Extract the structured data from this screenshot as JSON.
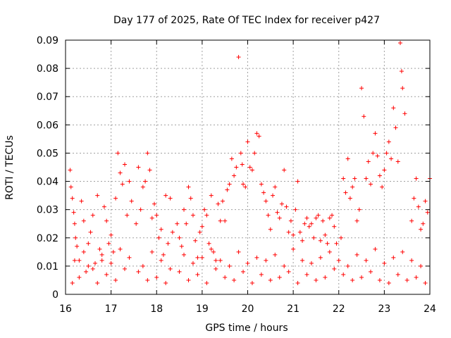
{
  "chart_data": {
    "type": "scatter",
    "title": "Day 177 of 2025, Rate Of TEC Index for receiver p427",
    "xlabel": "GPS time / hours",
    "ylabel": "ROTI / TECUs",
    "xlim": [
      16,
      24
    ],
    "ylim": [
      0,
      0.09
    ],
    "xticks": [
      16,
      17,
      18,
      19,
      20,
      21,
      22,
      23,
      24
    ],
    "xtick_labels": [
      "16",
      "17",
      "18",
      "19",
      "20",
      "21",
      "22",
      "23",
      "24"
    ],
    "yticks": [
      0,
      0.01,
      0.02,
      0.03,
      0.04,
      0.05,
      0.06,
      0.07,
      0.08,
      0.09
    ],
    "ytick_labels": [
      "0",
      "0.01",
      "0.02",
      "0.03",
      "0.04",
      "0.05",
      "0.06",
      "0.07",
      "0.08",
      "0.09"
    ],
    "grid": true,
    "marker": "+",
    "color": "#ff0000",
    "series": [
      {
        "name": "ROTI",
        "x": [
          16.1,
          16.12,
          16.15,
          16.18,
          16.2,
          16.22,
          16.25,
          16.3,
          16.35,
          16.4,
          16.45,
          16.5,
          16.55,
          16.6,
          16.65,
          16.7,
          16.75,
          16.8,
          16.85,
          16.9,
          16.95,
          17.0,
          17.05,
          17.1,
          17.15,
          17.2,
          17.25,
          17.3,
          17.35,
          17.4,
          17.45,
          17.55,
          17.6,
          17.65,
          17.7,
          17.75,
          17.8,
          17.85,
          17.9,
          17.95,
          18.0,
          18.05,
          18.1,
          18.15,
          18.2,
          18.25,
          18.3,
          18.35,
          18.45,
          18.5,
          18.55,
          18.6,
          18.65,
          18.7,
          18.75,
          18.8,
          18.85,
          18.9,
          18.95,
          19.0,
          19.05,
          19.1,
          19.15,
          19.2,
          19.25,
          19.3,
          19.35,
          19.4,
          19.45,
          19.5,
          19.55,
          19.6,
          19.65,
          19.7,
          19.75,
          19.8,
          19.85,
          19.88,
          19.9,
          19.95,
          20.0,
          20.05,
          20.1,
          20.15,
          20.2,
          20.25,
          20.3,
          20.35,
          20.4,
          20.45,
          20.5,
          20.55,
          20.6,
          20.65,
          20.7,
          20.75,
          20.8,
          20.85,
          20.9,
          20.95,
          21.0,
          21.05,
          21.1,
          21.15,
          21.2,
          21.25,
          21.3,
          21.35,
          21.4,
          21.45,
          21.5,
          21.55,
          21.6,
          21.65,
          21.7,
          21.75,
          21.8,
          21.85,
          21.9,
          21.95,
          22.05,
          22.1,
          22.15,
          22.2,
          22.25,
          22.3,
          22.35,
          22.4,
          22.45,
          22.5,
          22.55,
          22.6,
          22.65,
          22.7,
          22.75,
          22.8,
          22.85,
          22.9,
          22.95,
          23.0,
          23.05,
          23.1,
          23.15,
          23.2,
          23.25,
          23.3,
          23.35,
          23.38,
          23.4,
          23.45,
          23.6,
          23.65,
          23.7,
          23.75,
          23.8,
          23.85,
          23.9,
          23.95,
          24.0,
          16.15,
          16.3,
          16.5,
          16.7,
          16.9,
          17.1,
          17.3,
          17.6,
          17.8,
          18.0,
          18.2,
          18.5,
          18.7,
          18.9,
          19.1,
          19.3,
          19.5,
          19.7,
          19.9,
          20.1,
          20.3,
          20.5,
          20.7,
          20.9,
          21.1,
          21.3,
          21.5,
          21.7,
          21.9,
          22.1,
          22.3,
          22.5,
          22.7,
          22.9,
          23.1,
          23.3,
          23.5,
          23.7,
          23.9,
          16.2,
          16.4,
          16.6,
          16.8,
          17.0,
          17.2,
          17.4,
          17.7,
          17.9,
          18.1,
          18.3,
          18.6,
          18.8,
          19.0,
          19.2,
          19.4,
          19.6,
          19.8,
          20.0,
          20.2,
          20.4,
          20.6,
          20.8,
          21.0,
          21.2,
          21.4,
          21.6,
          21.8,
          22.0,
          22.2,
          22.4,
          22.6,
          22.8,
          23.0,
          23.2,
          23.4,
          23.6,
          23.8
        ],
        "y": [
          0.044,
          0.038,
          0.034,
          0.029,
          0.025,
          0.02,
          0.017,
          0.012,
          0.033,
          0.026,
          0.008,
          0.018,
          0.022,
          0.028,
          0.011,
          0.035,
          0.016,
          0.012,
          0.031,
          0.026,
          0.018,
          0.021,
          0.015,
          0.034,
          0.05,
          0.043,
          0.039,
          0.046,
          0.028,
          0.04,
          0.033,
          0.025,
          0.045,
          0.03,
          0.038,
          0.04,
          0.05,
          0.044,
          0.027,
          0.032,
          0.028,
          0.02,
          0.023,
          0.014,
          0.035,
          0.018,
          0.034,
          0.022,
          0.025,
          0.02,
          0.017,
          0.03,
          0.025,
          0.038,
          0.034,
          0.028,
          0.019,
          0.013,
          0.022,
          0.024,
          0.03,
          0.028,
          0.018,
          0.035,
          0.015,
          0.012,
          0.032,
          0.026,
          0.033,
          0.026,
          0.037,
          0.039,
          0.048,
          0.042,
          0.045,
          0.084,
          0.05,
          0.046,
          0.039,
          0.038,
          0.054,
          0.045,
          0.044,
          0.05,
          0.057,
          0.056,
          0.039,
          0.036,
          0.033,
          0.028,
          0.023,
          0.035,
          0.038,
          0.029,
          0.027,
          0.032,
          0.044,
          0.031,
          0.022,
          0.026,
          0.021,
          0.03,
          0.04,
          0.022,
          0.019,
          0.025,
          0.027,
          0.024,
          0.025,
          0.02,
          0.027,
          0.028,
          0.019,
          0.026,
          0.021,
          0.018,
          0.027,
          0.028,
          0.024,
          0.018,
          0.02,
          0.041,
          0.036,
          0.048,
          0.034,
          0.038,
          0.041,
          0.026,
          0.03,
          0.073,
          0.063,
          0.041,
          0.047,
          0.039,
          0.05,
          0.057,
          0.049,
          0.042,
          0.038,
          0.044,
          0.05,
          0.054,
          0.048,
          0.066,
          0.059,
          0.047,
          0.089,
          0.079,
          0.073,
          0.064,
          0.026,
          0.034,
          0.041,
          0.031,
          0.023,
          0.025,
          0.033,
          0.029,
          0.041,
          0.004,
          0.006,
          0.01,
          0.004,
          0.007,
          0.005,
          0.009,
          0.008,
          0.005,
          0.006,
          0.004,
          0.008,
          0.005,
          0.007,
          0.004,
          0.009,
          0.006,
          0.005,
          0.008,
          0.004,
          0.007,
          0.005,
          0.006,
          0.008,
          0.004,
          0.007,
          0.005,
          0.006,
          0.009,
          0.007,
          0.005,
          0.006,
          0.008,
          0.005,
          0.004,
          0.007,
          0.005,
          0.006,
          0.004,
          0.012,
          0.015,
          0.009,
          0.014,
          0.011,
          0.016,
          0.013,
          0.01,
          0.015,
          0.012,
          0.009,
          0.014,
          0.011,
          0.013,
          0.016,
          0.012,
          0.01,
          0.015,
          0.011,
          0.013,
          0.012,
          0.014,
          0.01,
          0.016,
          0.012,
          0.011,
          0.013,
          0.015,
          0.012,
          0.01,
          0.014,
          0.012,
          0.016,
          0.011,
          0.013,
          0.015,
          0.012,
          0.01
        ]
      }
    ]
  }
}
